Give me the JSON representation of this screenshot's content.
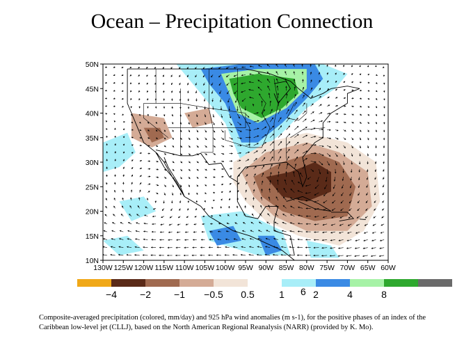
{
  "page": {
    "title": "Ocean – Precipitation Connection",
    "caption": "Composite-averaged precipitation (colored, mm/day) and 925 hPa wind anomalies (m s-1), for the positive phases of an index of the Caribbean low-level jet (CLLJ), based on the North American Regional Reanalysis (NARR) (provided by K. Mo).",
    "page_number": "6"
  },
  "chart_data": {
    "type": "heatmap",
    "title": "Ocean – Precipitation Connection",
    "x_ticks": [
      "130W",
      "125W",
      "120W",
      "115W",
      "110W",
      "105W",
      "100W",
      "95W",
      "90W",
      "85W",
      "80W",
      "75W",
      "70W",
      "65W",
      "60W"
    ],
    "y_ticks": [
      "10N",
      "15N",
      "20N",
      "25N",
      "30N",
      "35N",
      "40N",
      "45N",
      "50N"
    ],
    "xlim": [
      -130,
      -60
    ],
    "ylim": [
      10,
      50
    ],
    "colorbar": {
      "labels": [
        "−4",
        "−2",
        "−1",
        "−0.5",
        "0.5",
        "1",
        "2",
        "4",
        "8"
      ],
      "colors": [
        "#f0a818",
        "#5a2a18",
        "#a06a50",
        "#d4ab96",
        "#f2e4d8",
        "#ffffff",
        "#a8eef8",
        "#3a8ae4",
        "#a6f2a6",
        "#2ea82e",
        "#6a6a6a"
      ]
    },
    "colors": {
      "land_outline": "#000000",
      "wind_arrows": "#000000"
    }
  }
}
